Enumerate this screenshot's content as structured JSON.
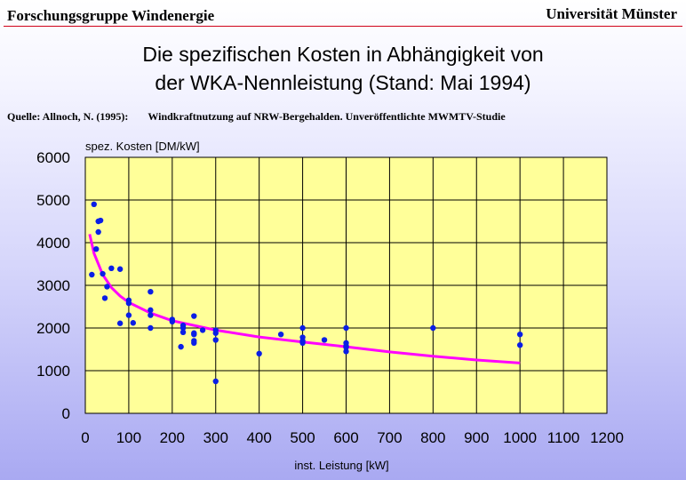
{
  "header": {
    "left": "Forschungsgruppe Windenergie",
    "right": "Universität Münster"
  },
  "title_line1": "Die spezifischen Kosten in Abhängigkeit von",
  "title_line2": "der WKA-Nennleistung (Stand: Mai 1994)",
  "source": {
    "label": "Quelle: Allnoch, N. (1995):",
    "text": "Windkraftnutzung auf NRW-Bergehalden. Unveröffentlichte MWMTV-Studie"
  },
  "colors": {
    "points": "#0a1ee6",
    "curve": "#ff00ff",
    "plot_bg": "#ffff99",
    "accent_line": "#d0021b"
  },
  "chart_data": {
    "type": "scatter",
    "ylabel": "spez. Kosten [DM/kW]",
    "xlabel": "inst. Leistung [kW]",
    "xlim": [
      0,
      1200
    ],
    "ylim": [
      0,
      6000
    ],
    "xticks": [
      0,
      100,
      200,
      300,
      400,
      500,
      600,
      700,
      800,
      900,
      1000,
      1100,
      1200
    ],
    "yticks": [
      0,
      1000,
      2000,
      3000,
      4000,
      5000,
      6000
    ],
    "grid": true,
    "legend": "none",
    "series": [
      {
        "points": [
          [
            15,
            3250
          ],
          [
            20,
            4900
          ],
          [
            25,
            3850
          ],
          [
            30,
            4250
          ],
          [
            30,
            4500
          ],
          [
            35,
            4520
          ],
          [
            40,
            3270
          ],
          [
            45,
            2700
          ],
          [
            50,
            2970
          ],
          [
            60,
            3400
          ],
          [
            80,
            3380
          ],
          [
            80,
            2110
          ],
          [
            100,
            2650
          ],
          [
            100,
            2300
          ],
          [
            100,
            2580
          ],
          [
            110,
            2120
          ],
          [
            150,
            2850
          ],
          [
            150,
            2420
          ],
          [
            150,
            2300
          ],
          [
            150,
            2000
          ],
          [
            200,
            2200
          ],
          [
            200,
            2150
          ],
          [
            220,
            1560
          ],
          [
            225,
            2060
          ],
          [
            225,
            1900
          ],
          [
            225,
            2000
          ],
          [
            250,
            2280
          ],
          [
            250,
            1880
          ],
          [
            250,
            1850
          ],
          [
            250,
            1700
          ],
          [
            250,
            1650
          ],
          [
            270,
            1950
          ],
          [
            300,
            1950
          ],
          [
            300,
            1880
          ],
          [
            300,
            1720
          ],
          [
            300,
            750
          ],
          [
            400,
            1400
          ],
          [
            450,
            1850
          ],
          [
            500,
            2000
          ],
          [
            500,
            1780
          ],
          [
            500,
            1700
          ],
          [
            500,
            1650
          ],
          [
            550,
            1720
          ],
          [
            600,
            2000
          ],
          [
            600,
            1650
          ],
          [
            600,
            1580
          ],
          [
            600,
            1550
          ],
          [
            600,
            1450
          ],
          [
            800,
            2000
          ],
          [
            1000,
            1850
          ],
          [
            1000,
            1600
          ]
        ]
      },
      {
        "type": "line",
        "fit": "power",
        "points": [
          [
            10,
            4200
          ],
          [
            20,
            3750
          ],
          [
            40,
            3250
          ],
          [
            60,
            2950
          ],
          [
            80,
            2750
          ],
          [
            100,
            2600
          ],
          [
            150,
            2350
          ],
          [
            200,
            2170
          ],
          [
            300,
            1950
          ],
          [
            400,
            1790
          ],
          [
            500,
            1670
          ],
          [
            600,
            1560
          ],
          [
            700,
            1440
          ],
          [
            800,
            1340
          ],
          [
            900,
            1250
          ],
          [
            1000,
            1180
          ]
        ]
      }
    ]
  }
}
